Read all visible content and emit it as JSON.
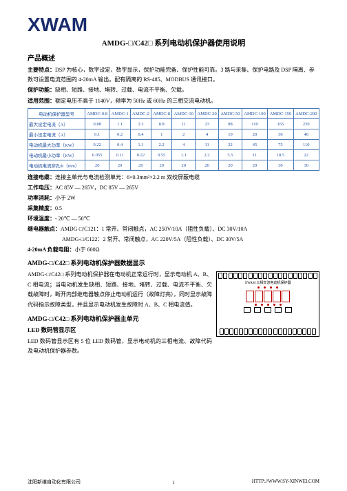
{
  "brand": "XWAM",
  "main_title": "AMDG-□/C42□ 系列电动机保护器使用说明",
  "section_overview": "产品概述",
  "features": {
    "label": "主要特点：",
    "text": "DSP 为核心，数字设定，数字显示，保护功能完备、保护性能可靠。3 路与采集、保护电路及 DSP 隔离、参数可设置电流范围的 4-20mA 输出。配有隔离的 RS-485、MODBUS 通讯接口。"
  },
  "protection": {
    "label": "保护功能：",
    "text": "缺相、短路、接地、堵转、过载、电流不平衡、欠载。"
  },
  "scope": {
    "label": "适用范围：",
    "text": "额定电压不高于 1140V，频率为 50Hz 或 60Hz 的三相交流电动机。"
  },
  "table": {
    "headers": [
      "电动机保护器型号",
      "AMDC-0.8",
      "AMDC-1",
      "AMDC-2",
      "AMDC-8",
      "AMDC-10",
      "AMDC-20",
      "AMDC-50",
      "AMDC-100",
      "AMDC-150",
      "AMDC-200"
    ],
    "rows": [
      [
        "最大设定电流（A）",
        "0.88",
        "1.1",
        "2.3",
        "8.8",
        "11",
        "23",
        "88",
        "110",
        "165",
        "220"
      ],
      [
        "最小设定电流（A）",
        "0.1",
        "0.2",
        "0.4",
        "1",
        "2",
        "4",
        "10",
        "20",
        "30",
        "40"
      ],
      [
        "电动机最大功率（KW）",
        "0.22",
        "0.4",
        "1.1",
        "2.2",
        "4",
        "11",
        "22",
        "45",
        "75",
        "110"
      ],
      [
        "电动机最小功率（KW）",
        "0.055",
        "0.11",
        "0.22",
        "0.55",
        "1.1",
        "2.2",
        "5.5",
        "11",
        "18.5",
        "22"
      ],
      [
        "电动机电流穿孔Φ（mm）",
        "20",
        "20",
        "20",
        "20",
        "20",
        "20",
        "20",
        "20",
        "30",
        "30"
      ]
    ]
  },
  "lines": {
    "cable": {
      "k": "连接电缆：",
      "v": "连接主单元与电流检测单元：6×0.3mm²×2.2 m 双绞屏蔽电缆"
    },
    "workv": {
      "k": "工作电压：",
      "v": "AC 85V — 265V，DC 85V — 265V"
    },
    "power": {
      "k": "功率消耗：",
      "v": "小于 2W"
    },
    "accuracy": {
      "k": "采集精度：",
      "v": "0.5"
    },
    "temp": {
      "k": "环境温度：",
      "v": "- 20℃ — 50℃"
    },
    "relay": {
      "k": "继电器触点：",
      "v": "AMDG-□/C121：1 常开、常闭触点，AC 250V/10A（阻性负载）、DC 30V/10A"
    },
    "relay2": {
      "v": "AMDG-□/C122：2 常开、常闭触点，AC 220V/5A（阻性负载）、DC 30V/5A"
    },
    "load": {
      "k": "4-20mA 负载电阻：",
      "v": "小于 600Ω"
    }
  },
  "disp_h": "AMDG-□/C42□ 系列电动机保护器数据显示",
  "disp_body1": "AMDG-□/C42□ 系列电动机保护器在电动机正常运行时，显示电动机 A、B、C 相电流；当电动机发生缺相、短路、接地、堵转、过载、电流不平衡、欠载故障时，断开内部继电器触点停止电动机运行（故障灯亮），同时显示故障代码指示故障类型，并且显示电动机发生故障时 A、B、C 相电流值。",
  "unit_h": "AMDG-□/C42□ 系列电动机保护器主单元",
  "led_h": "LED 数码管显示区",
  "led_body": "LED 数码管显示区有 5 位 LED 数码管，显示电动机的三相电流、故障代码及电动机保护器参数。",
  "device_label": "XWAM  三相交流电动机保护器",
  "footer_left": "沈阳新维自动化有限公司",
  "footer_right": "HTTP://WWW.SY-XINWEI.COM",
  "page_num": "1"
}
